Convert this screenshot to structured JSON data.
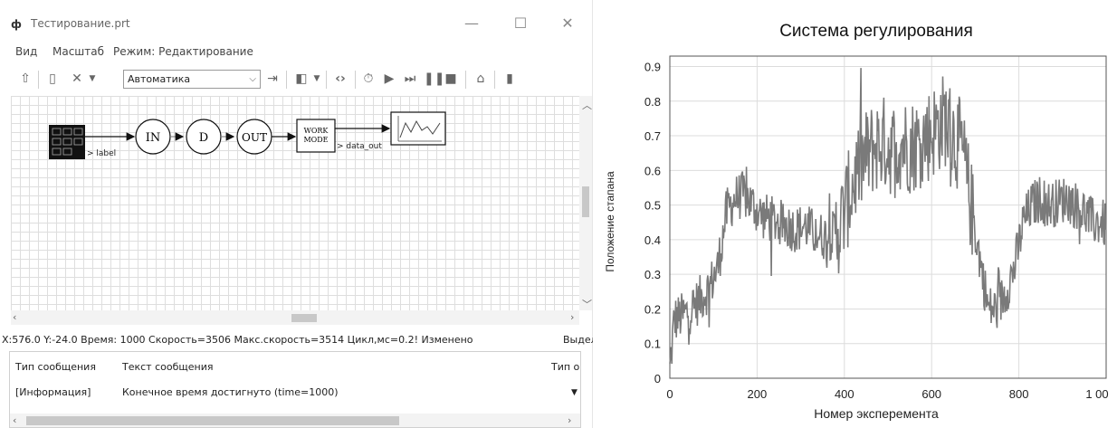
{
  "window": {
    "title": "Тестирование.prt",
    "icon": "app-logo-icon",
    "minimize": "—",
    "maximize": "☐",
    "close": "✕"
  },
  "menu": {
    "view": "Вид",
    "scale": "Масштаб",
    "mode": "Режим: Редактирование"
  },
  "toolbar": {
    "mode_select_value": "Автоматика",
    "icons": [
      "up-arrow-icon",
      "page-icon",
      "tools-icon",
      "step-icon",
      "layers-icon",
      "code-icon",
      "timer-icon",
      "play-icon",
      "step-forward-icon",
      "pause-icon",
      "stop-icon",
      "house-icon",
      "exit-icon"
    ]
  },
  "diagram": {
    "source_label": "> label",
    "block_in": "IN",
    "block_d": "D",
    "block_out": "OUT",
    "work_mode_line1": "WORK",
    "work_mode_line2": "MODE",
    "data_out_label": "> data_out"
  },
  "status": {
    "text": "X:576.0  Y:-24.0 Время: 1000 Скорость=3506 Макс.скорость=3514 Цикл,мс=0.2! Изменено",
    "right": "Выдел"
  },
  "messages": {
    "col_type": "Тип сообщения",
    "col_text": "Текст сообщения",
    "col_type2": "Тип о",
    "rows": [
      {
        "type": "[Информация]",
        "text": "Конечное время достигнуто (time=1000)"
      }
    ]
  },
  "chart_data": {
    "type": "line",
    "title": "Система регулирования",
    "xlabel": "Номер эксперемента",
    "ylabel": "Положение стапана",
    "xlim": [
      0,
      1000
    ],
    "ylim": [
      0,
      0.93
    ],
    "xticks": [
      "0",
      "200",
      "400",
      "600",
      "800",
      "1 00"
    ],
    "yticks": [
      "0",
      "0.1",
      "0.2",
      "0.3",
      "0.4",
      "0.5",
      "0.6",
      "0.7",
      "0.8",
      "0.9"
    ],
    "grid": true,
    "series_color": "#7a7a7a",
    "series": [
      {
        "points": [
          [
            0,
            0.02
          ],
          [
            10,
            0.17
          ],
          [
            30,
            0.18
          ],
          [
            50,
            0.2
          ],
          [
            70,
            0.23
          ],
          [
            90,
            0.26
          ],
          [
            110,
            0.32
          ],
          [
            130,
            0.48
          ],
          [
            150,
            0.52
          ],
          [
            170,
            0.53
          ],
          [
            190,
            0.5
          ],
          [
            210,
            0.47
          ],
          [
            230,
            0.46
          ],
          [
            250,
            0.45
          ],
          [
            270,
            0.44
          ],
          [
            290,
            0.43
          ],
          [
            310,
            0.44
          ],
          [
            330,
            0.42
          ],
          [
            350,
            0.41
          ],
          [
            370,
            0.41
          ],
          [
            390,
            0.44
          ],
          [
            410,
            0.52
          ],
          [
            430,
            0.6
          ],
          [
            450,
            0.64
          ],
          [
            470,
            0.67
          ],
          [
            490,
            0.68
          ],
          [
            510,
            0.66
          ],
          [
            530,
            0.68
          ],
          [
            550,
            0.67
          ],
          [
            570,
            0.68
          ],
          [
            590,
            0.7
          ],
          [
            610,
            0.72
          ],
          [
            630,
            0.75
          ],
          [
            650,
            0.7
          ],
          [
            670,
            0.66
          ],
          [
            690,
            0.5
          ],
          [
            710,
            0.35
          ],
          [
            730,
            0.2
          ],
          [
            750,
            0.2
          ],
          [
            770,
            0.25
          ],
          [
            790,
            0.32
          ],
          [
            810,
            0.45
          ],
          [
            830,
            0.5
          ],
          [
            850,
            0.52
          ],
          [
            870,
            0.5
          ],
          [
            890,
            0.51
          ],
          [
            910,
            0.52
          ],
          [
            930,
            0.5
          ],
          [
            950,
            0.48
          ],
          [
            970,
            0.45
          ],
          [
            990,
            0.45
          ],
          [
            1000,
            0.44
          ]
        ]
      }
    ]
  }
}
